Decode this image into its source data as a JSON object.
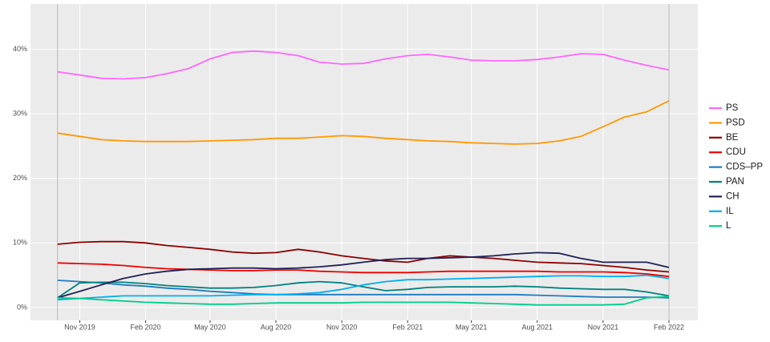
{
  "chart_data": {
    "type": "line",
    "x": [
      "2019-10",
      "2019-11",
      "2019-12",
      "2020-01",
      "2020-02",
      "2020-03",
      "2020-04",
      "2020-05",
      "2020-06",
      "2020-07",
      "2020-08",
      "2020-09",
      "2020-10",
      "2020-11",
      "2020-12",
      "2021-01",
      "2021-02",
      "2021-03",
      "2021-04",
      "2021-05",
      "2021-06",
      "2021-07",
      "2021-08",
      "2021-09",
      "2021-10",
      "2021-11",
      "2021-12",
      "2022-01",
      "2022-02"
    ],
    "xlim": [
      "2019-09",
      "2022-03"
    ],
    "xticks": [
      {
        "value": "2019-11",
        "label": "Nov 2019"
      },
      {
        "value": "2020-02",
        "label": "Feb 2020"
      },
      {
        "value": "2020-05",
        "label": "May 2020"
      },
      {
        "value": "2020-08",
        "label": "Aug 2020"
      },
      {
        "value": "2020-11",
        "label": "Nov 2020"
      },
      {
        "value": "2021-02",
        "label": "Feb 2021"
      },
      {
        "value": "2021-05",
        "label": "May 2021"
      },
      {
        "value": "2021-08",
        "label": "Aug 2021"
      },
      {
        "value": "2021-11",
        "label": "Nov 2021"
      },
      {
        "value": "2022-02",
        "label": "Feb 2022"
      }
    ],
    "ylim": [
      -2,
      47
    ],
    "yticks": [
      {
        "value": 0,
        "label": "0%"
      },
      {
        "value": 10,
        "label": "10%"
      },
      {
        "value": 20,
        "label": "20%"
      },
      {
        "value": 30,
        "label": "30%"
      },
      {
        "value": 40,
        "label": "40%"
      }
    ],
    "grid": true,
    "legend": "right",
    "series": [
      {
        "name": "PS",
        "color": "#ff66ff",
        "values": [
          36.5,
          36,
          35.5,
          35.4,
          35.6,
          36.2,
          37,
          38.5,
          39.5,
          39.7,
          39.5,
          39,
          38,
          37.7,
          37.8,
          38.5,
          39,
          39.2,
          38.8,
          38.3,
          38.2,
          38.2,
          38.4,
          38.8,
          39.3,
          39.2,
          38.3,
          37.5,
          36.8
        ]
      },
      {
        "name": "PSD",
        "color": "#ff9900",
        "values": [
          27,
          26.5,
          26,
          25.8,
          25.7,
          25.7,
          25.7,
          25.8,
          25.9,
          26,
          26.2,
          26.2,
          26.4,
          26.6,
          26.5,
          26.2,
          26,
          25.8,
          25.7,
          25.5,
          25.4,
          25.3,
          25.4,
          25.8,
          26.5,
          28,
          29.5,
          30.3,
          32
        ]
      },
      {
        "name": "BE",
        "color": "#8b0000",
        "values": [
          9.8,
          10.1,
          10.2,
          10.2,
          10,
          9.6,
          9.3,
          9,
          8.6,
          8.4,
          8.5,
          9,
          8.6,
          8,
          7.6,
          7.2,
          7,
          7.6,
          8,
          7.8,
          7.6,
          7.3,
          7,
          6.9,
          6.8,
          6.5,
          6.2,
          5.8,
          5.5
        ]
      },
      {
        "name": "CDU",
        "color": "#ee0000",
        "values": [
          6.9,
          6.8,
          6.7,
          6.5,
          6.2,
          6,
          5.9,
          5.8,
          5.7,
          5.7,
          5.8,
          5.8,
          5.6,
          5.5,
          5.4,
          5.4,
          5.4,
          5.5,
          5.6,
          5.6,
          5.6,
          5.6,
          5.6,
          5.5,
          5.5,
          5.5,
          5.4,
          5.2,
          4.8
        ]
      },
      {
        "name": "CDS–PP",
        "color": "#1f7bc0",
        "values": [
          4.2,
          4,
          3.8,
          3.5,
          3.3,
          3,
          2.8,
          2.5,
          2.3,
          2.1,
          2,
          2,
          2,
          2,
          2,
          2,
          2,
          2,
          2,
          2,
          2,
          2,
          1.9,
          1.8,
          1.7,
          1.6,
          1.6,
          1.6,
          1.5
        ]
      },
      {
        "name": "PAN",
        "color": "#00827f",
        "values": [
          1.5,
          3.8,
          3.9,
          3.9,
          3.7,
          3.4,
          3.2,
          3,
          3,
          3.1,
          3.4,
          3.8,
          4,
          3.8,
          3.2,
          2.6,
          2.8,
          3.1,
          3.2,
          3.2,
          3.2,
          3.3,
          3.2,
          3,
          2.9,
          2.8,
          2.8,
          2.4,
          1.8
        ]
      },
      {
        "name": "CH",
        "color": "#202056",
        "values": [
          1.5,
          2.5,
          3.5,
          4.5,
          5.2,
          5.6,
          5.9,
          6,
          6.1,
          6.1,
          6,
          6.1,
          6.3,
          6.6,
          7,
          7.4,
          7.6,
          7.6,
          7.7,
          7.8,
          8,
          8.3,
          8.5,
          8.4,
          7.6,
          7,
          7,
          7,
          6.2
        ]
      },
      {
        "name": "IL",
        "color": "#00aeef",
        "values": [
          1.2,
          1.4,
          1.6,
          1.8,
          1.8,
          1.8,
          1.8,
          1.8,
          1.9,
          2,
          2,
          2.1,
          2.3,
          2.8,
          3.5,
          4,
          4.3,
          4.3,
          4.4,
          4.5,
          4.6,
          4.7,
          4.8,
          4.9,
          4.9,
          4.8,
          4.8,
          5,
          4.5
        ]
      },
      {
        "name": "L",
        "color": "#00cd8c",
        "values": [
          1.5,
          1.4,
          1.2,
          1,
          0.8,
          0.7,
          0.6,
          0.5,
          0.5,
          0.6,
          0.7,
          0.7,
          0.7,
          0.7,
          0.8,
          0.8,
          0.8,
          0.8,
          0.8,
          0.7,
          0.6,
          0.5,
          0.4,
          0.4,
          0.4,
          0.4,
          0.5,
          1.5,
          1.7
        ]
      }
    ]
  }
}
